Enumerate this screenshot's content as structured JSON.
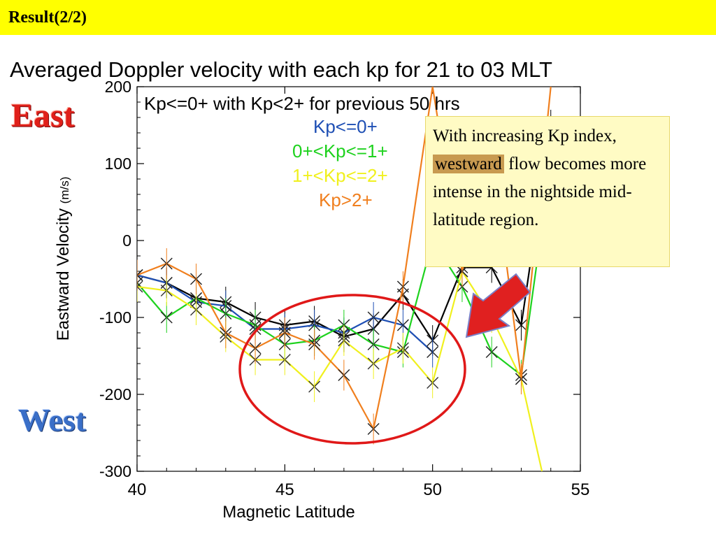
{
  "header": {
    "title": "Result(2/2)"
  },
  "labels": {
    "east": "East",
    "west": "West"
  },
  "annotation": {
    "text_before": "With increasing Kp index,",
    "highlight": "westward",
    "text_after": "flow becomes more intense in the nightside mid-latitude region."
  },
  "colors": {
    "header_bg": "#ffff00",
    "ellipse": "#e01818",
    "arrow": "#e02020",
    "note_bg": "#fffbc4",
    "highlight_bg": "#c89a50"
  },
  "chart_data": {
    "type": "line",
    "title": "Averaged Doppler velocity with each kp for 21 to 03 MLT",
    "xlabel": "Magnetic Latitude",
    "ylabel": "Eastward Velocity",
    "ylabel_unit": "(m/s)",
    "xlim": [
      40,
      55
    ],
    "ylim": [
      -300,
      200
    ],
    "xticks": [
      40,
      45,
      50,
      55
    ],
    "yticks": [
      -300,
      -200,
      -100,
      0,
      100,
      200
    ],
    "grid": false,
    "legend_position": "top",
    "legend_header": "Kp<=0+ with Kp<2+ for previous 50 hrs",
    "series": [
      {
        "name": "",
        "color": "#000000",
        "x": [
          40,
          41,
          42,
          43,
          44,
          45,
          46,
          47,
          48,
          49,
          50,
          51,
          52,
          53,
          54
        ],
        "y": [
          -45,
          -55,
          -75,
          -80,
          -100,
          -110,
          -105,
          -125,
          -115,
          -70,
          -130,
          -35,
          -35,
          -110,
          150
        ]
      },
      {
        "name": "Kp<=0+",
        "color": "#1e4fb4",
        "x": [
          40,
          41,
          42,
          43,
          44,
          45,
          46,
          47,
          48,
          49,
          50
        ],
        "y": [
          -45,
          -55,
          -80,
          -85,
          -115,
          -115,
          -110,
          -120,
          -100,
          -110,
          -145
        ]
      },
      {
        "name": "0+<Kp<=1+",
        "color": "#1ed21e",
        "x": [
          40,
          41,
          42,
          43,
          44,
          45,
          46,
          47,
          48,
          49,
          50,
          51,
          52,
          53,
          54
        ],
        "y": [
          -55,
          -100,
          -75,
          -95,
          -110,
          -135,
          -130,
          -110,
          -135,
          -145,
          0,
          -60,
          -145,
          -175,
          100
        ]
      },
      {
        "name": "1+<Kp<=2+",
        "color": "#f0f01e",
        "x": [
          40,
          41,
          42,
          43,
          44,
          45,
          46,
          47,
          48,
          49,
          50,
          51,
          52,
          53,
          53.7
        ],
        "y": [
          -60,
          -65,
          -90,
          -125,
          -155,
          -155,
          -190,
          -130,
          -160,
          -140,
          -185,
          -40,
          -100,
          -180,
          -300
        ]
      },
      {
        "name": "Kp>2+",
        "color": "#f07f1e",
        "x": [
          40,
          41,
          42,
          43,
          44,
          45,
          46,
          47,
          48,
          49,
          50,
          51,
          52,
          53,
          54
        ],
        "y": [
          -45,
          -30,
          -50,
          -120,
          -140,
          -120,
          -135,
          -175,
          -245,
          -60,
          200,
          -40,
          120,
          -180,
          200
        ]
      }
    ]
  }
}
